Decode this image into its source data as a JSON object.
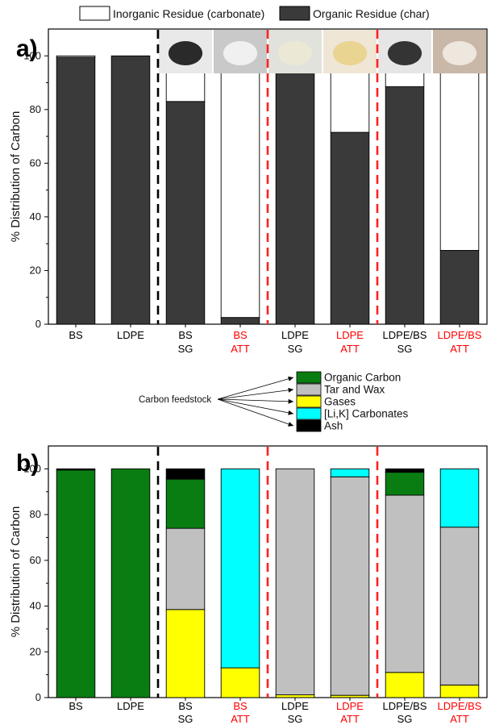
{
  "colors": {
    "inorganic": "#ffffff",
    "organic": "#3a3a3a",
    "organic_carbon": "#0a7d12",
    "tar_wax": "#c0c0c0",
    "gases": "#ffff00",
    "carbonates": "#00ffff",
    "ash": "#000000",
    "att_label": "#ff0000",
    "normal_label": "#000000",
    "divider_black": "#000000",
    "divider_red": "#ff2020"
  },
  "legend_a": {
    "inorganic": "Inorganic Residue (carbonate)",
    "organic": "Organic Residue (char)"
  },
  "legend_b": {
    "feedstock_label": "Carbon feedstock",
    "items": [
      "Organic Carbon",
      "Tar and Wax",
      "Gases",
      "[Li,K] Carbonates",
      "Ash"
    ]
  },
  "chart_data": [
    {
      "panel": "a)",
      "type": "bar",
      "stacked": true,
      "ylabel": "% Distribution of Carbon",
      "ylim": [
        0,
        110
      ],
      "yticks": [
        0,
        20,
        40,
        60,
        80,
        100
      ],
      "categories": [
        {
          "line1": "BS",
          "line2": "",
          "att": false
        },
        {
          "line1": "LDPE",
          "line2": "",
          "att": false
        },
        {
          "line1": "BS",
          "line2": "SG",
          "att": false
        },
        {
          "line1": "BS",
          "line2": "ATT",
          "att": true
        },
        {
          "line1": "LDPE",
          "line2": "SG",
          "att": false
        },
        {
          "line1": "LDPE",
          "line2": "ATT",
          "att": true
        },
        {
          "line1": "LDPE/BS",
          "line2": "SG",
          "att": false
        },
        {
          "line1": "LDPE/BS",
          "line2": "ATT",
          "att": true
        }
      ],
      "series": [
        {
          "name": "Organic Residue (char)",
          "values": [
            99.5,
            100,
            83,
            2.5,
            100,
            71.5,
            88.5,
            27.5
          ]
        },
        {
          "name": "Inorganic Residue (carbonate)",
          "values": [
            0.5,
            0,
            17,
            97.5,
            0,
            28.5,
            11.5,
            72.5
          ]
        }
      ],
      "legend": "top"
    },
    {
      "panel": "b)",
      "type": "bar",
      "stacked": true,
      "ylabel": "% Distribution of Carbon",
      "ylim": [
        0,
        110
      ],
      "yticks": [
        0,
        20,
        40,
        60,
        80,
        100
      ],
      "categories": [
        {
          "line1": "BS",
          "line2": "",
          "att": false
        },
        {
          "line1": "LDPE",
          "line2": "",
          "att": false
        },
        {
          "line1": "BS",
          "line2": "SG",
          "att": false
        },
        {
          "line1": "BS",
          "line2": "ATT",
          "att": true
        },
        {
          "line1": "LDPE",
          "line2": "SG",
          "att": false
        },
        {
          "line1": "LDPE",
          "line2": "ATT",
          "att": true
        },
        {
          "line1": "LDPE/BS",
          "line2": "SG",
          "att": false
        },
        {
          "line1": "LDPE/BS",
          "line2": "ATT",
          "att": true
        }
      ],
      "series": [
        {
          "name": "Gases",
          "values": [
            0,
            0,
            38.5,
            13,
            1.2,
            1,
            11,
            5.5
          ]
        },
        {
          "name": "Tar and Wax",
          "values": [
            0,
            0,
            35.5,
            0,
            98.8,
            95.5,
            77.5,
            69
          ]
        },
        {
          "name": "Organic Carbon",
          "values": [
            99.5,
            100,
            21.5,
            0,
            0,
            0,
            10,
            0
          ]
        },
        {
          "name": "[Li,K] Carbonates",
          "values": [
            0,
            0,
            0,
            87,
            0,
            3.5,
            0,
            25.5
          ]
        },
        {
          "name": "Ash",
          "values": [
            0.5,
            0,
            4.5,
            0,
            0,
            0,
            1.5,
            0
          ]
        }
      ],
      "legend": "top-right"
    }
  ]
}
